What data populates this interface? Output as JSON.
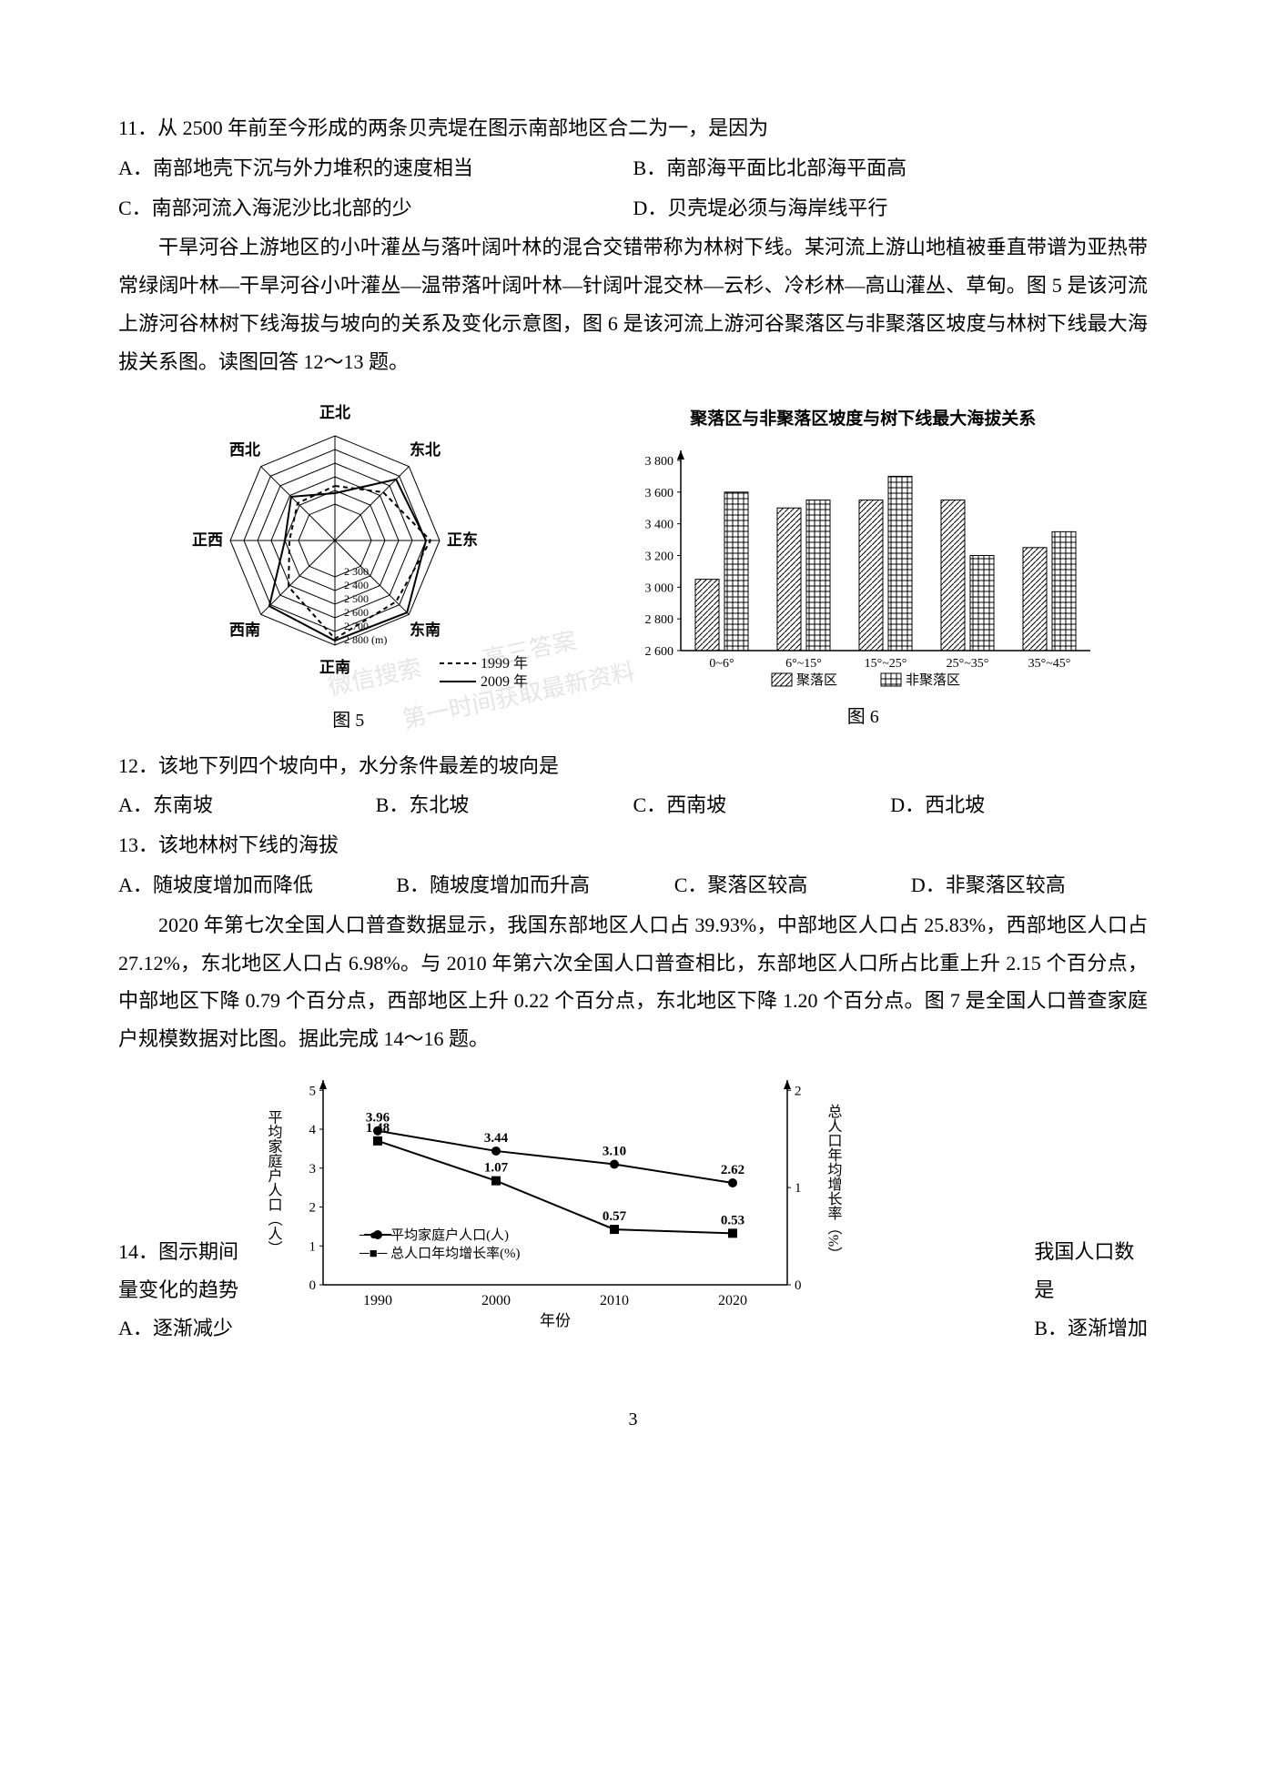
{
  "q11": {
    "text": "11．从 2500 年前至今形成的两条贝壳堤在图示南部地区合二为一，是因为",
    "optA": "A．南部地壳下沉与外力堆积的速度相当",
    "optB": "B．南部海平面比北部海平面高",
    "optC": "C．南部河流入海泥沙比北部的少",
    "optD": "D．贝壳堤必须与海岸线平行"
  },
  "context1": {
    "text": "干旱河谷上游地区的小叶灌丛与落叶阔叶林的混合交错带称为林树下线。某河流上游山地植被垂直带谱为亚热带常绿阔叶林—干旱河谷小叶灌丛—温带落叶阔叶林—针阔叶混交林—云杉、冷杉林—高山灌丛、草甸。图 5 是该河流上游河谷林树下线海拔与坡向的关系及变化示意图，图 6 是该河流上游河谷聚落区与非聚落区坡度与林树下线最大海拔关系图。读图回答 12～13 题。"
  },
  "fig5": {
    "label": "图 5",
    "directions": [
      "正北",
      "东北",
      "正东",
      "东南",
      "正南",
      "西南",
      "正西",
      "西北"
    ],
    "ring_values": [
      "2 300",
      "2 400",
      "2 500",
      "2 600",
      "2 700",
      "2 800 (m)"
    ],
    "ring_radii": [
      40,
      55,
      70,
      85,
      100,
      115
    ],
    "legend1": "1999 年",
    "legend2": "2009 年",
    "series_1999": [
      60,
      75,
      105,
      95,
      108,
      72,
      50,
      58
    ],
    "series_2009": [
      52,
      95,
      100,
      112,
      110,
      102,
      55,
      68
    ],
    "line_color": "#000000"
  },
  "fig6": {
    "label": "图 6",
    "title": "聚落区与非聚落区坡度与树下线最大海拔关系",
    "y_ticks": [
      "2 600",
      "2 800",
      "3 000",
      "3 200",
      "3 400",
      "3 600",
      "3 800"
    ],
    "x_categories": [
      "0~6°",
      "6°~15°",
      "15°~25°",
      "25°~35°",
      "35°~45°"
    ],
    "legend_a": "聚落区",
    "legend_b": "非聚落区",
    "series_a": [
      3050,
      3500,
      3550,
      3550,
      3250
    ],
    "series_b": [
      3600,
      3550,
      3700,
      3200,
      3350
    ],
    "ymin": 2600,
    "ymax": 3800,
    "bar_color": "#ffffff",
    "stroke": "#000000"
  },
  "q12": {
    "text": "12．该地下列四个坡向中，水分条件最差的坡向是",
    "optA": "A．东南坡",
    "optB": "B．东北坡",
    "optC": "C．西南坡",
    "optD": "D．西北坡"
  },
  "q13": {
    "text": "13．该地林树下线的海拔",
    "optA": "A．随坡度增加而降低",
    "optB": "B．随坡度增加而升高",
    "optC": "C．聚落区较高",
    "optD": "D．非聚落区较高"
  },
  "context2": {
    "text": "2020 年第七次全国人口普查数据显示，我国东部地区人口占 39.93%，中部地区人口占 25.83%，西部地区人口占 27.12%，东北地区人口占 6.98%。与 2010 年第六次全国人口普查相比，东部地区人口所占比重上升 2.15 个百分点，中部地区下降 0.79 个百分点，西部地区上升 0.22 个百分点，东北地区下降 1.20 个百分点。图 7 是全国人口普查家庭户规模数据对比图。据此完成 14～16 题。"
  },
  "fig7": {
    "y1_label": "平均家庭户人口（人）",
    "y2_label": "总人口年均增长率（%）",
    "x_label": "年份",
    "x_values": [
      "1990",
      "2000",
      "2010",
      "2020"
    ],
    "y1_ticks": [
      "0",
      "1",
      "2",
      "3",
      "4",
      "5"
    ],
    "y2_ticks": [
      "0",
      "1",
      "2"
    ],
    "series1_name": "平均家庭户人口(人)",
    "series2_name": "总人口年均增长率(%)",
    "series1_values": [
      3.96,
      3.44,
      3.1,
      2.62
    ],
    "series2_values": [
      1.48,
      1.07,
      0.57,
      0.53
    ],
    "series1_labels": [
      "3.96",
      "3.44",
      "3.10",
      "2.62"
    ],
    "series2_labels": [
      "1.48",
      "1.07",
      "0.57",
      "0.53"
    ],
    "marker1": "circle",
    "marker2": "square",
    "color": "#000000"
  },
  "q14": {
    "prefix": "14．图示期间",
    "suffix1": "我国人口数",
    "line2": "量变化的趋势",
    "suffix2": "是",
    "optA": "A．逐渐减少",
    "optB": "B．逐渐增加"
  },
  "pageNumber": "3"
}
